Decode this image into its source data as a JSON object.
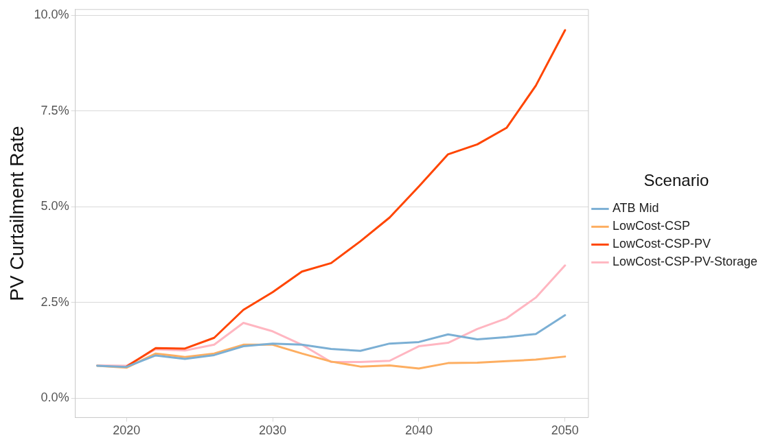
{
  "chart_data": {
    "type": "line",
    "xlabel": null,
    "ylabel": "PV Curtailment Rate",
    "legend_title": "Scenario",
    "x": [
      2018,
      2020,
      2022,
      2024,
      2026,
      2028,
      2030,
      2032,
      2034,
      2036,
      2038,
      2040,
      2042,
      2044,
      2046,
      2048,
      2050
    ],
    "series": [
      {
        "name": "ATB Mid",
        "color": "#7bafd4",
        "values": [
          0.85,
          0.82,
          1.12,
          1.03,
          1.13,
          1.36,
          1.43,
          1.4,
          1.29,
          1.24,
          1.43,
          1.47,
          1.67,
          1.54,
          1.6,
          1.68,
          2.17
        ]
      },
      {
        "name": "LowCost-CSP",
        "color": "#fdae61",
        "values": [
          0.85,
          0.8,
          1.17,
          1.08,
          1.17,
          1.4,
          1.4,
          1.17,
          0.96,
          0.83,
          0.86,
          0.78,
          0.92,
          0.93,
          0.97,
          1.01,
          1.09
        ]
      },
      {
        "name": "LowCost-CSP-PV",
        "color": "#ff4500",
        "values": [
          null,
          0.83,
          1.31,
          1.3,
          1.58,
          2.31,
          2.77,
          3.31,
          3.53,
          4.1,
          4.72,
          5.53,
          6.37,
          6.63,
          7.06,
          8.16,
          9.61
        ]
      },
      {
        "name": "LowCost-CSP-PV-Storage",
        "color": "#ffb6c1",
        "values": [
          0.86,
          0.85,
          1.28,
          1.25,
          1.4,
          1.97,
          1.75,
          1.4,
          0.95,
          0.95,
          0.98,
          1.36,
          1.45,
          1.81,
          2.09,
          2.63,
          3.47
        ]
      }
    ],
    "xlim": [
      2016.5,
      2051.6
    ],
    "xticks": [
      2020,
      2030,
      2040,
      2050
    ],
    "ylim": [
      -0.5,
      10.15
    ],
    "yticks": [
      {
        "value": 0,
        "label": "0.0%"
      },
      {
        "value": 2.5,
        "label": "2.5%"
      },
      {
        "value": 5,
        "label": "5.0%"
      },
      {
        "value": 7.5,
        "label": "7.5%"
      },
      {
        "value": 10,
        "label": "10.0%"
      }
    ],
    "grid": "y",
    "legend": "right",
    "marker": "none",
    "line_style": "solid"
  }
}
